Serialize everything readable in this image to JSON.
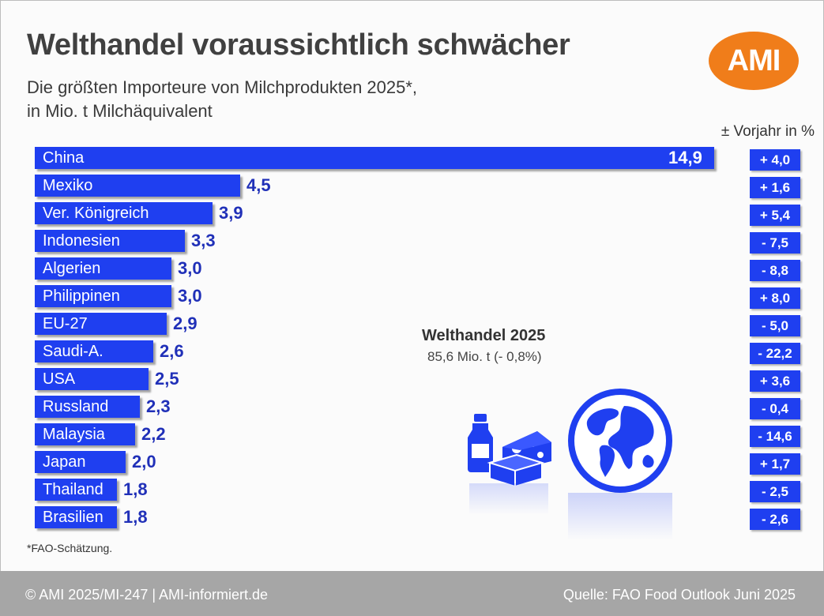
{
  "header": {
    "title": "Welthandel voraussichtlich schwächer",
    "subtitle_line1": "Die größten Importeure von Milchprodukten 2025*,",
    "subtitle_line2": "in Mio. t Milchäquivalent",
    "logo_text": "AMI",
    "change_header": "± Vorjahr in %"
  },
  "colors": {
    "bar": "#1f3ff0",
    "value_text": "#2030b8",
    "logo": "#f07d1a",
    "footer": "#a6a6a6"
  },
  "chart_data": {
    "type": "bar",
    "orientation": "horizontal",
    "title": "Welthandel voraussichtlich schwächer",
    "subtitle": "Die größten Importeure von Milchprodukten 2025*, in Mio. t Milchäquivalent",
    "categories": [
      "China",
      "Mexiko",
      "Ver. Königreich",
      "Indonesien",
      "Algerien",
      "Philippinen",
      "EU-27",
      "Saudi-A.",
      "USA",
      "Russland",
      "Malaysia",
      "Japan",
      "Thailand",
      "Brasilien"
    ],
    "values": [
      14.9,
      4.5,
      3.9,
      3.3,
      3.0,
      3.0,
      2.9,
      2.6,
      2.5,
      2.3,
      2.2,
      2.0,
      1.8,
      1.8
    ],
    "value_labels": [
      "14,9",
      "4,5",
      "3,9",
      "3,3",
      "3,0",
      "3,0",
      "2,9",
      "2,6",
      "2,5",
      "2,3",
      "2,2",
      "2,0",
      "1,8",
      "1,8"
    ],
    "change_values": [
      4.0,
      1.6,
      5.4,
      -7.5,
      -8.8,
      8.0,
      -5.0,
      -22.2,
      3.6,
      -0.4,
      -14.6,
      1.7,
      -2.5,
      -2.6
    ],
    "change_labels": [
      "+ 4,0",
      "+ 1,6",
      "+ 5,4",
      "- 7,5",
      "- 8,8",
      "+ 8,0",
      "- 5,0",
      "- 22,2",
      "+ 3,6",
      "- 0,4",
      "- 14,6",
      "+ 1,7",
      "- 2,5",
      "- 2,6"
    ],
    "change_label": "± Vorjahr in %",
    "grid": false
  },
  "summary": {
    "title": "Welthandel 2025",
    "value": "85,6 Mio. t (- 0,8%)"
  },
  "icons": [
    "milk-bottle-icon",
    "cheese-icon",
    "butter-icon",
    "globe-icon"
  ],
  "footnote": "*FAO-Schätzung.",
  "footer": {
    "left": "© AMI 2025/MI-247 | AMI-informiert.de",
    "right": "Quelle: FAO Food Outlook Juni 2025"
  }
}
